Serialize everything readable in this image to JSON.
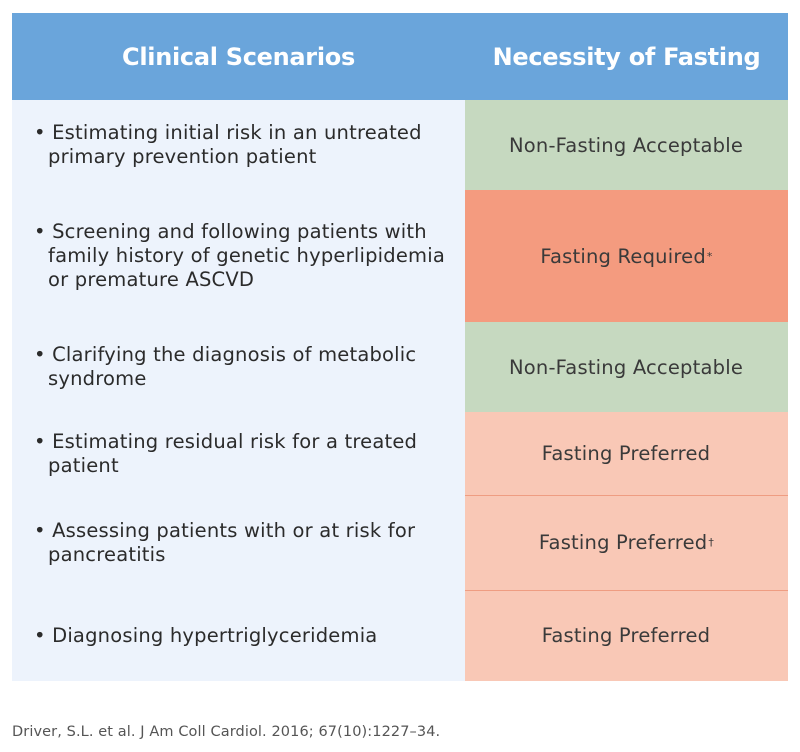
{
  "header": {
    "col1": "Clinical Scenarios",
    "col2": "Necessity of Fasting"
  },
  "rows": [
    {
      "scenario": "• Estimating initial risk in an untreated primary prevention patient",
      "fasting": "Non-Fasting Acceptable",
      "fasting_mark": "",
      "status": "non-fasting"
    },
    {
      "scenario": "• Screening and following patients with family history of genetic hyperlipidemia or premature ASCVD",
      "fasting": "Fasting Required",
      "fasting_mark": "*",
      "status": "required"
    },
    {
      "scenario": "• Clarifying the diagnosis of metabolic syndrome",
      "fasting": "Non-Fasting Acceptable",
      "fasting_mark": "",
      "status": "non-fasting"
    },
    {
      "scenario": "• Estimating residual risk for a treated patient",
      "fasting": "Fasting Preferred",
      "fasting_mark": "",
      "status": "preferred"
    },
    {
      "scenario": "• Assessing patients with or at risk for pancreatitis",
      "fasting": "Fasting Preferred",
      "fasting_mark": "†",
      "status": "preferred"
    },
    {
      "scenario": "• Diagnosing hypertriglyceridemia",
      "fasting": "Fasting Preferred",
      "fasting_mark": "",
      "status": "preferred"
    }
  ],
  "colors": {
    "header": "#6aa5db",
    "scenario_bg": "#edf3fc",
    "non_fasting": "#c6d9c0",
    "required": "#f49b7f",
    "preferred": "#f9c8b6"
  },
  "citation": "Driver, S.L. et al. J Am Coll Cardiol. 2016; 67(10):1227–34."
}
